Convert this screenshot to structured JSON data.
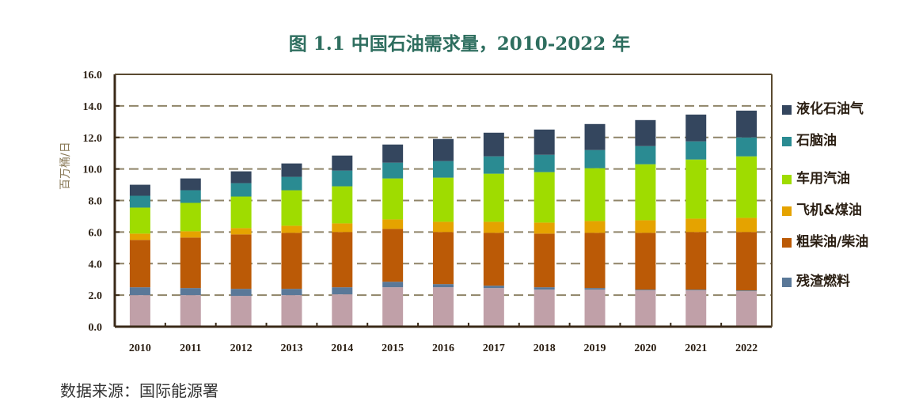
{
  "chart_data": {
    "type": "bar",
    "stacked": true,
    "title": "图 1.1 中国石油需求量，2010-2022 年",
    "ylabel": "百万桶/日",
    "xlabel": "",
    "ylim": [
      0,
      16
    ],
    "yticks": [
      "0.0",
      "2.0",
      "4.0",
      "6.0",
      "8.0",
      "10.0",
      "12.0",
      "14.0",
      "16.0"
    ],
    "grid": true,
    "legend_position": "right",
    "categories": [
      "2010",
      "2011",
      "2012",
      "2013",
      "2014",
      "2015",
      "2016",
      "2017",
      "2018",
      "2019",
      "2020",
      "2021",
      "2022"
    ],
    "series": [
      {
        "color": "#c0a0a8",
        "values": [
          2.0,
          2.0,
          1.95,
          2.0,
          2.05,
          2.5,
          2.5,
          2.45,
          2.35,
          2.35,
          2.3,
          2.3,
          2.25
        ]
      },
      {
        "name": "残渣燃料",
        "color": "#5a7898",
        "values": [
          0.5,
          0.45,
          0.45,
          0.4,
          0.45,
          0.35,
          0.2,
          0.15,
          0.15,
          0.1,
          0.05,
          0.05,
          0.05
        ]
      },
      {
        "name": "粗柴油/柴油",
        "color": "#bb5a06",
        "values": [
          3.0,
          3.2,
          3.45,
          3.55,
          3.5,
          3.35,
          3.3,
          3.35,
          3.4,
          3.5,
          3.6,
          3.65,
          3.7
        ]
      },
      {
        "name": "飞机&煤油",
        "color": "#e5a300",
        "values": [
          0.4,
          0.4,
          0.4,
          0.45,
          0.55,
          0.6,
          0.65,
          0.7,
          0.7,
          0.75,
          0.8,
          0.85,
          0.9
        ]
      },
      {
        "name": "车用汽油",
        "color": "#9fdc00",
        "values": [
          1.65,
          1.8,
          2.0,
          2.25,
          2.35,
          2.6,
          2.8,
          3.05,
          3.2,
          3.35,
          3.55,
          3.75,
          3.9
        ]
      },
      {
        "name": "石脑油",
        "color": "#2a8b92",
        "values": [
          0.75,
          0.8,
          0.85,
          0.85,
          1.0,
          1.0,
          1.05,
          1.1,
          1.1,
          1.15,
          1.15,
          1.15,
          1.2
        ]
      },
      {
        "name": "液化石油气",
        "color": "#34465e",
        "values": [
          0.7,
          0.75,
          0.75,
          0.85,
          0.95,
          1.15,
          1.4,
          1.5,
          1.6,
          1.65,
          1.65,
          1.7,
          1.7
        ]
      }
    ],
    "legend_order": [
      6,
      5,
      4,
      3,
      2,
      1
    ]
  },
  "source": "数据来源：国际能源署"
}
